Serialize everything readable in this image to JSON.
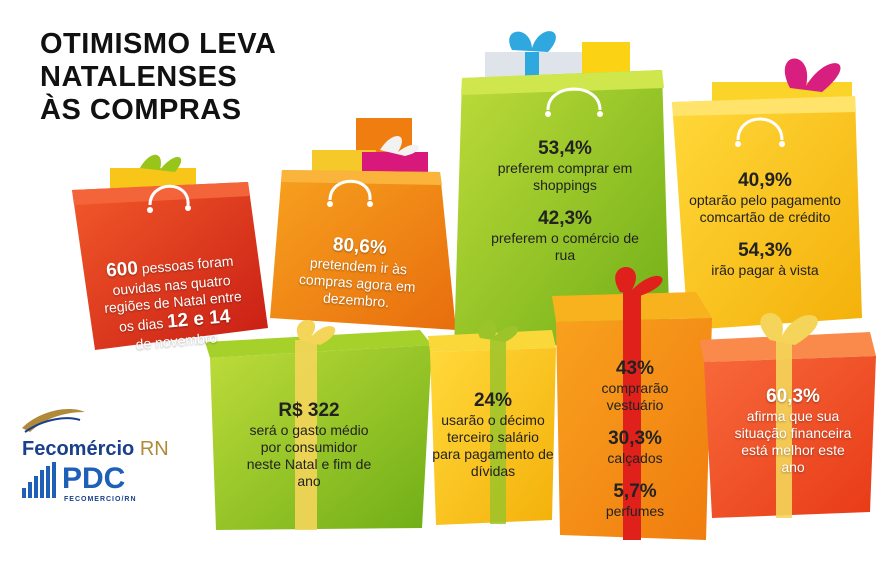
{
  "title": {
    "line1": "OTIMISMO LEVA",
    "line2": "NATALENSES",
    "line3": "ÀS COMPRAS"
  },
  "bags": {
    "survey": {
      "count": "600",
      "text1": "pessoas foram",
      "text2": "ouvidas nas quatro",
      "text3": "regiões de Natal entre",
      "text4": "os dias",
      "days": "12 e 14",
      "text5": "de novembro"
    },
    "december": {
      "value": "80,6%",
      "text": "pretendem ir às compras agora em dezembro."
    },
    "shopping": {
      "value1": "53,4%",
      "text1": "preferem comprar em shoppings",
      "value2": "42,3%",
      "text2": "preferem o comércio de rua"
    },
    "payment": {
      "value1": "40,9%",
      "text1": "optarão pelo pagamento comcartão de crédito",
      "value2": "54,3%",
      "text2": "irão pagar à vista"
    }
  },
  "boxes": {
    "spending": {
      "value": "R$ 322",
      "text": "será o gasto médio por consumidor neste Natal e fim de ano"
    },
    "thirteenth": {
      "value": "24%",
      "text": "usarão o décimo terceiro salário para pagamento de dívidas"
    },
    "purchases": {
      "value1": "43%",
      "text1": "comprarão vestuário",
      "value2": "30,3%",
      "text2": "calçados",
      "value3": "5,7%",
      "text3": "perfumes"
    },
    "finance": {
      "value": "60,3%",
      "text": "afirma que sua situação financeira está melhor este ano"
    }
  },
  "logos": {
    "fecomercio_name": "Fecomércio",
    "fecomercio_rn": "RN",
    "pdc_name": "PDC",
    "pdc_sub": "FECOMERCIO/RN"
  },
  "colors": {
    "red": "#e8361c",
    "orange": "#f38a10",
    "green": "#96c21a",
    "yellow": "#fbc50e",
    "ribbon": "#f2e06a"
  }
}
